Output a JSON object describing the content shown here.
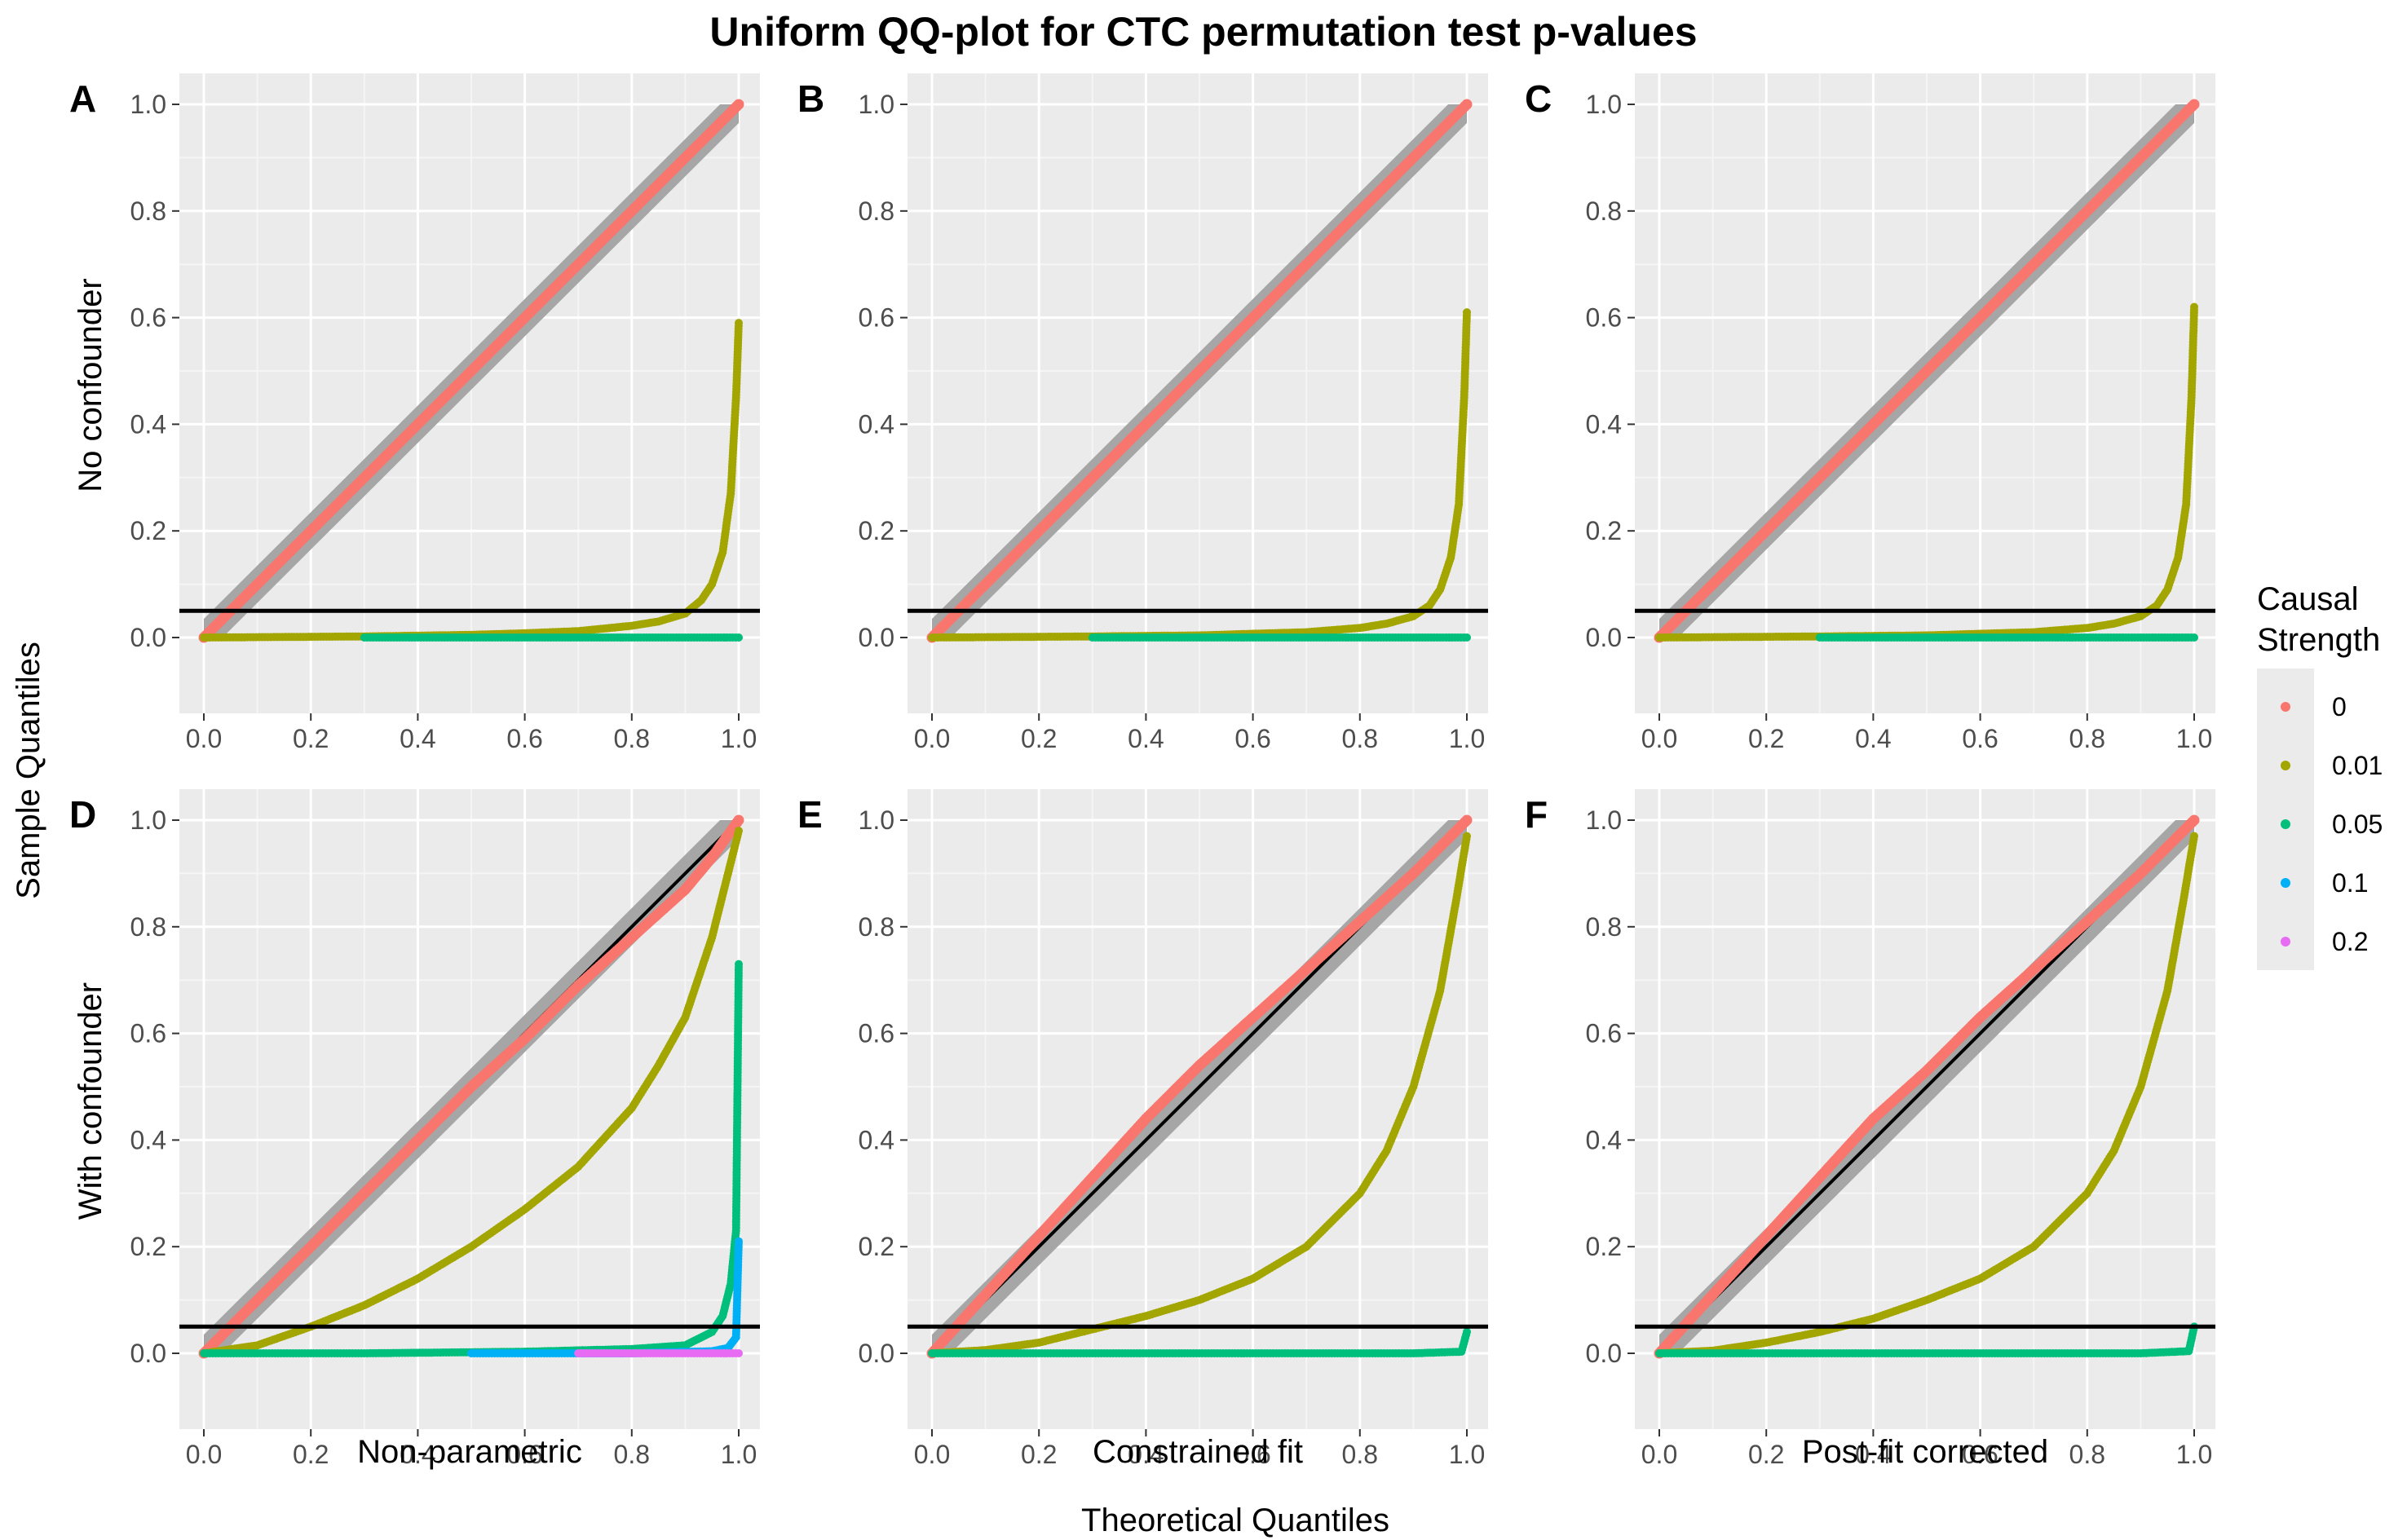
{
  "chart_data": {
    "type": "scatter",
    "title": "Uniform QQ-plot for CTC permutation test p-values",
    "xlabel": "Theoretical Quantiles",
    "ylabel": "Sample Quantiles",
    "row_labels": [
      "No confounder",
      "With confounder"
    ],
    "col_labels": [
      "Non-parametric",
      "Constrained fit",
      "Post-fit corrected"
    ],
    "xlim": [
      0,
      1
    ],
    "ylim": [
      0,
      1
    ],
    "x_ticks": [
      "0.0",
      "0.2",
      "0.4",
      "0.6",
      "0.8",
      "1.0"
    ],
    "y_ticks": [
      "0.0",
      "0.2",
      "0.4",
      "0.6",
      "0.8",
      "1.0"
    ],
    "hline": 0.05,
    "grid": true,
    "legend": {
      "title_lines": [
        "Causal",
        "Strength"
      ],
      "placement": "right",
      "entries": [
        {
          "label": "0",
          "color": "#F8766D"
        },
        {
          "label": "0.01",
          "color": "#A3A500"
        },
        {
          "label": "0.05",
          "color": "#00BF7D"
        },
        {
          "label": "0.1",
          "color": "#00B0F6"
        },
        {
          "label": "0.2",
          "color": "#E76BF3"
        }
      ]
    },
    "panels": [
      {
        "letter": "A",
        "series": [
          {
            "strength": "0",
            "points": [
              [
                0,
                0
              ],
              [
                0.1,
                0.1
              ],
              [
                0.2,
                0.2
              ],
              [
                0.3,
                0.3
              ],
              [
                0.4,
                0.4
              ],
              [
                0.5,
                0.5
              ],
              [
                0.6,
                0.6
              ],
              [
                0.7,
                0.7
              ],
              [
                0.8,
                0.8
              ],
              [
                0.9,
                0.9
              ],
              [
                1,
                1
              ]
            ]
          },
          {
            "strength": "0.01",
            "points": [
              [
                0,
                0
              ],
              [
                0.3,
                0.002
              ],
              [
                0.5,
                0.005
              ],
              [
                0.6,
                0.008
              ],
              [
                0.7,
                0.012
              ],
              [
                0.8,
                0.022
              ],
              [
                0.85,
                0.03
              ],
              [
                0.9,
                0.045
              ],
              [
                0.93,
                0.07
              ],
              [
                0.95,
                0.1
              ],
              [
                0.97,
                0.16
              ],
              [
                0.985,
                0.27
              ],
              [
                0.995,
                0.45
              ],
              [
                1,
                0.59
              ]
            ]
          },
          {
            "strength": "0.05",
            "points": [
              [
                0.3,
                0
              ],
              [
                0.6,
                0
              ],
              [
                0.8,
                0
              ],
              [
                1,
                0
              ]
            ]
          }
        ]
      },
      {
        "letter": "B",
        "series": [
          {
            "strength": "0",
            "points": [
              [
                0,
                0
              ],
              [
                0.1,
                0.1
              ],
              [
                0.2,
                0.2
              ],
              [
                0.3,
                0.3
              ],
              [
                0.4,
                0.4
              ],
              [
                0.5,
                0.5
              ],
              [
                0.6,
                0.6
              ],
              [
                0.7,
                0.7
              ],
              [
                0.8,
                0.8
              ],
              [
                0.9,
                0.9
              ],
              [
                1,
                1
              ]
            ]
          },
          {
            "strength": "0.01",
            "points": [
              [
                0,
                0
              ],
              [
                0.3,
                0.002
              ],
              [
                0.5,
                0.004
              ],
              [
                0.6,
                0.007
              ],
              [
                0.7,
                0.01
              ],
              [
                0.8,
                0.018
              ],
              [
                0.85,
                0.026
              ],
              [
                0.9,
                0.04
              ],
              [
                0.93,
                0.06
              ],
              [
                0.95,
                0.09
              ],
              [
                0.97,
                0.15
              ],
              [
                0.985,
                0.25
              ],
              [
                0.995,
                0.45
              ],
              [
                1,
                0.61
              ]
            ]
          },
          {
            "strength": "0.05",
            "points": [
              [
                0.3,
                0
              ],
              [
                0.6,
                0
              ],
              [
                0.8,
                0
              ],
              [
                1,
                0
              ]
            ]
          }
        ]
      },
      {
        "letter": "C",
        "series": [
          {
            "strength": "0",
            "points": [
              [
                0,
                0
              ],
              [
                0.1,
                0.1
              ],
              [
                0.2,
                0.2
              ],
              [
                0.3,
                0.3
              ],
              [
                0.4,
                0.4
              ],
              [
                0.5,
                0.5
              ],
              [
                0.6,
                0.6
              ],
              [
                0.7,
                0.7
              ],
              [
                0.8,
                0.8
              ],
              [
                0.9,
                0.9
              ],
              [
                1,
                1
              ]
            ]
          },
          {
            "strength": "0.01",
            "points": [
              [
                0,
                0
              ],
              [
                0.3,
                0.002
              ],
              [
                0.5,
                0.004
              ],
              [
                0.6,
                0.007
              ],
              [
                0.7,
                0.01
              ],
              [
                0.8,
                0.018
              ],
              [
                0.85,
                0.026
              ],
              [
                0.9,
                0.04
              ],
              [
                0.93,
                0.06
              ],
              [
                0.95,
                0.09
              ],
              [
                0.97,
                0.15
              ],
              [
                0.985,
                0.25
              ],
              [
                0.995,
                0.45
              ],
              [
                1,
                0.62
              ]
            ]
          },
          {
            "strength": "0.05",
            "points": [
              [
                0.3,
                0
              ],
              [
                0.6,
                0
              ],
              [
                0.8,
                0
              ],
              [
                1,
                0
              ]
            ]
          }
        ]
      },
      {
        "letter": "D",
        "series": [
          {
            "strength": "0",
            "points": [
              [
                0,
                0
              ],
              [
                0.1,
                0.1
              ],
              [
                0.2,
                0.2
              ],
              [
                0.3,
                0.3
              ],
              [
                0.4,
                0.4
              ],
              [
                0.5,
                0.5
              ],
              [
                0.6,
                0.59
              ],
              [
                0.7,
                0.69
              ],
              [
                0.8,
                0.78
              ],
              [
                0.9,
                0.87
              ],
              [
                0.95,
                0.93
              ],
              [
                1,
                1
              ]
            ]
          },
          {
            "strength": "0.01",
            "points": [
              [
                0,
                0
              ],
              [
                0.1,
                0.015
              ],
              [
                0.2,
                0.05
              ],
              [
                0.3,
                0.09
              ],
              [
                0.4,
                0.14
              ],
              [
                0.5,
                0.2
              ],
              [
                0.6,
                0.27
              ],
              [
                0.7,
                0.35
              ],
              [
                0.8,
                0.46
              ],
              [
                0.85,
                0.54
              ],
              [
                0.9,
                0.63
              ],
              [
                0.95,
                0.78
              ],
              [
                0.98,
                0.9
              ],
              [
                1,
                0.98
              ]
            ]
          },
          {
            "strength": "0.05",
            "points": [
              [
                0,
                0
              ],
              [
                0.3,
                0
              ],
              [
                0.6,
                0.003
              ],
              [
                0.8,
                0.008
              ],
              [
                0.9,
                0.015
              ],
              [
                0.95,
                0.04
              ],
              [
                0.97,
                0.07
              ],
              [
                0.985,
                0.13
              ],
              [
                0.995,
                0.23
              ],
              [
                1,
                0.73
              ]
            ]
          },
          {
            "strength": "0.1",
            "points": [
              [
                0.5,
                0
              ],
              [
                0.8,
                0
              ],
              [
                0.95,
                0.004
              ],
              [
                0.98,
                0.01
              ],
              [
                0.995,
                0.03
              ],
              [
                1,
                0.21
              ]
            ]
          },
          {
            "strength": "0.2",
            "points": [
              [
                0.7,
                0
              ],
              [
                0.9,
                0
              ],
              [
                1,
                0
              ]
            ]
          }
        ]
      },
      {
        "letter": "E",
        "series": [
          {
            "strength": "0",
            "points": [
              [
                0,
                0
              ],
              [
                0.1,
                0.11
              ],
              [
                0.2,
                0.22
              ],
              [
                0.3,
                0.33
              ],
              [
                0.4,
                0.44
              ],
              [
                0.5,
                0.54
              ],
              [
                0.6,
                0.63
              ],
              [
                0.7,
                0.72
              ],
              [
                0.8,
                0.81
              ],
              [
                0.9,
                0.9
              ],
              [
                1,
                1
              ]
            ]
          },
          {
            "strength": "0.01",
            "points": [
              [
                0,
                0
              ],
              [
                0.1,
                0.006
              ],
              [
                0.2,
                0.02
              ],
              [
                0.3,
                0.045
              ],
              [
                0.4,
                0.07
              ],
              [
                0.5,
                0.1
              ],
              [
                0.6,
                0.14
              ],
              [
                0.7,
                0.2
              ],
              [
                0.8,
                0.3
              ],
              [
                0.85,
                0.38
              ],
              [
                0.9,
                0.5
              ],
              [
                0.95,
                0.68
              ],
              [
                0.98,
                0.85
              ],
              [
                1,
                0.97
              ]
            ]
          },
          {
            "strength": "0.05",
            "points": [
              [
                0,
                0
              ],
              [
                0.3,
                0
              ],
              [
                0.6,
                0
              ],
              [
                0.9,
                0
              ],
              [
                0.99,
                0.003
              ],
              [
                1,
                0.04
              ]
            ]
          }
        ]
      },
      {
        "letter": "F",
        "series": [
          {
            "strength": "0",
            "points": [
              [
                0,
                0
              ],
              [
                0.1,
                0.11
              ],
              [
                0.2,
                0.22
              ],
              [
                0.3,
                0.33
              ],
              [
                0.4,
                0.44
              ],
              [
                0.5,
                0.53
              ],
              [
                0.6,
                0.63
              ],
              [
                0.7,
                0.72
              ],
              [
                0.8,
                0.81
              ],
              [
                0.9,
                0.9
              ],
              [
                1,
                1
              ]
            ]
          },
          {
            "strength": "0.01",
            "points": [
              [
                0,
                0
              ],
              [
                0.1,
                0.005
              ],
              [
                0.2,
                0.02
              ],
              [
                0.3,
                0.04
              ],
              [
                0.4,
                0.065
              ],
              [
                0.5,
                0.1
              ],
              [
                0.6,
                0.14
              ],
              [
                0.7,
                0.2
              ],
              [
                0.8,
                0.3
              ],
              [
                0.85,
                0.38
              ],
              [
                0.9,
                0.5
              ],
              [
                0.95,
                0.68
              ],
              [
                0.98,
                0.85
              ],
              [
                1,
                0.97
              ]
            ]
          },
          {
            "strength": "0.05",
            "points": [
              [
                0,
                0
              ],
              [
                0.3,
                0
              ],
              [
                0.6,
                0
              ],
              [
                0.9,
                0
              ],
              [
                0.99,
                0.004
              ],
              [
                1,
                0.05
              ]
            ]
          }
        ]
      }
    ]
  }
}
